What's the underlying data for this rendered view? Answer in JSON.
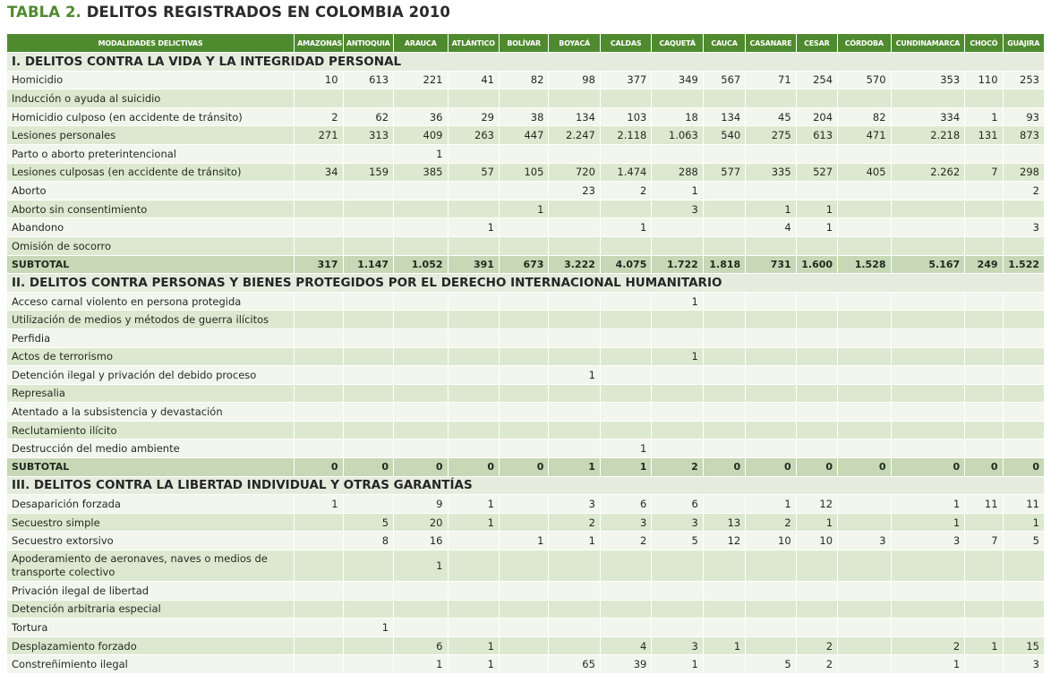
{
  "title": {
    "label": "TABLA 2.",
    "text": "DELITOS REGISTRADOS EN COLOMBIA 2010"
  },
  "columns": [
    "MODALIDADES DELICTIVAS",
    "AMAZONAS",
    "ANTIOQUIA",
    "ARAUCA",
    "ATLÁNTICO",
    "BOLÍVAR",
    "BOYACÁ",
    "CALDAS",
    "CAQUETÁ",
    "CAUCA",
    "CASANARE",
    "CESAR",
    "CÓRDOBA",
    "CUNDINAMARCA",
    "CHOCÓ",
    "GUAJIRA"
  ],
  "rows": [
    {
      "type": "section",
      "label": "I. DELITOS CONTRA LA VIDA Y LA INTEGRIDAD PERSONAL"
    },
    {
      "type": "data",
      "label": "Homicidio",
      "values": [
        "10",
        "613",
        "221",
        "41",
        "82",
        "98",
        "377",
        "349",
        "567",
        "71",
        "254",
        "570",
        "353",
        "110",
        "253"
      ]
    },
    {
      "type": "data",
      "label": "Inducción o ayuda al suicidio",
      "values": [
        "",
        "",
        "",
        "",
        "",
        "",
        "",
        "",
        "",
        "",
        "",
        "",
        "",
        "",
        ""
      ]
    },
    {
      "type": "data",
      "label": "Homicidio culposo (en accidente de tránsito)",
      "values": [
        "2",
        "62",
        "36",
        "29",
        "38",
        "134",
        "103",
        "18",
        "134",
        "45",
        "204",
        "82",
        "334",
        "1",
        "93"
      ]
    },
    {
      "type": "data",
      "label": "Lesiones personales",
      "values": [
        "271",
        "313",
        "409",
        "263",
        "447",
        "2.247",
        "2.118",
        "1.063",
        "540",
        "275",
        "613",
        "471",
        "2.218",
        "131",
        "873"
      ]
    },
    {
      "type": "data",
      "label": "Parto o aborto preterintencional",
      "values": [
        "",
        "",
        "1",
        "",
        "",
        "",
        "",
        "",
        "",
        "",
        "",
        "",
        "",
        "",
        ""
      ]
    },
    {
      "type": "data",
      "label": "Lesiones culposas (en accidente de tránsito)",
      "values": [
        "34",
        "159",
        "385",
        "57",
        "105",
        "720",
        "1.474",
        "288",
        "577",
        "335",
        "527",
        "405",
        "2.262",
        "7",
        "298"
      ]
    },
    {
      "type": "data",
      "label": "Aborto",
      "values": [
        "",
        "",
        "",
        "",
        "",
        "23",
        "2",
        "1",
        "",
        "",
        "",
        "",
        "",
        "",
        "2"
      ]
    },
    {
      "type": "data",
      "label": "Aborto sin consentimiento",
      "values": [
        "",
        "",
        "",
        "",
        "1",
        "",
        "",
        "3",
        "",
        "1",
        "1",
        "",
        "",
        "",
        ""
      ]
    },
    {
      "type": "data",
      "label": "Abandono",
      "values": [
        "",
        "",
        "",
        "1",
        "",
        "",
        "1",
        "",
        "",
        "4",
        "1",
        "",
        "",
        "",
        "3"
      ]
    },
    {
      "type": "data",
      "label": "Omisión de socorro",
      "values": [
        "",
        "",
        "",
        "",
        "",
        "",
        "",
        "",
        "",
        "",
        "",
        "",
        "",
        "",
        ""
      ]
    },
    {
      "type": "subtotal",
      "label": "SUBTOTAL",
      "values": [
        "317",
        "1.147",
        "1.052",
        "391",
        "673",
        "3.222",
        "4.075",
        "1.722",
        "1.818",
        "731",
        "1.600",
        "1.528",
        "5.167",
        "249",
        "1.522"
      ]
    },
    {
      "type": "section",
      "label": "II. DELITOS CONTRA PERSONAS Y BIENES PROTEGIDOS POR EL DERECHO INTERNACIONAL HUMANITARIO"
    },
    {
      "type": "data",
      "label": "Acceso carnal violento en persona protegida",
      "values": [
        "",
        "",
        "",
        "",
        "",
        "",
        "",
        "1",
        "",
        "",
        "",
        "",
        "",
        "",
        ""
      ]
    },
    {
      "type": "data",
      "label": "Utilización de medios y métodos de guerra ilícitos",
      "values": [
        "",
        "",
        "",
        "",
        "",
        "",
        "",
        "",
        "",
        "",
        "",
        "",
        "",
        "",
        ""
      ]
    },
    {
      "type": "data",
      "label": "Perfidia",
      "values": [
        "",
        "",
        "",
        "",
        "",
        "",
        "",
        "",
        "",
        "",
        "",
        "",
        "",
        "",
        ""
      ]
    },
    {
      "type": "data",
      "label": "Actos de terrorismo",
      "values": [
        "",
        "",
        "",
        "",
        "",
        "",
        "",
        "1",
        "",
        "",
        "",
        "",
        "",
        "",
        ""
      ]
    },
    {
      "type": "data",
      "label": "Detención ilegal y privación del debido proceso",
      "values": [
        "",
        "",
        "",
        "",
        "",
        "1",
        "",
        "",
        "",
        "",
        "",
        "",
        "",
        "",
        ""
      ]
    },
    {
      "type": "data",
      "label": "Represalia",
      "values": [
        "",
        "",
        "",
        "",
        "",
        "",
        "",
        "",
        "",
        "",
        "",
        "",
        "",
        "",
        ""
      ]
    },
    {
      "type": "data",
      "label": "Atentado a la subsistencia y devastación",
      "values": [
        "",
        "",
        "",
        "",
        "",
        "",
        "",
        "",
        "",
        "",
        "",
        "",
        "",
        "",
        ""
      ]
    },
    {
      "type": "data",
      "label": "Reclutamiento ilícito",
      "values": [
        "",
        "",
        "",
        "",
        "",
        "",
        "",
        "",
        "",
        "",
        "",
        "",
        "",
        "",
        ""
      ]
    },
    {
      "type": "data",
      "label": "Destrucción del medio ambiente",
      "values": [
        "",
        "",
        "",
        "",
        "",
        "",
        "1",
        "",
        "",
        "",
        "",
        "",
        "",
        "",
        ""
      ]
    },
    {
      "type": "subtotal",
      "label": "SUBTOTAL",
      "values": [
        "0",
        "0",
        "0",
        "0",
        "0",
        "1",
        "1",
        "2",
        "0",
        "0",
        "0",
        "0",
        "0",
        "0",
        "0"
      ]
    },
    {
      "type": "section",
      "label": "III. DELITOS CONTRA LA LIBERTAD INDIVIDUAL Y OTRAS GARANTÍAS"
    },
    {
      "type": "data",
      "label": "Desaparición forzada",
      "values": [
        "1",
        "",
        "9",
        "1",
        "",
        "3",
        "6",
        "6",
        "",
        "1",
        "12",
        "",
        "1",
        "11",
        "11"
      ]
    },
    {
      "type": "data",
      "label": "Secuestro simple",
      "values": [
        "",
        "5",
        "20",
        "1",
        "",
        "2",
        "3",
        "3",
        "13",
        "2",
        "1",
        "",
        "1",
        "",
        "1"
      ]
    },
    {
      "type": "data",
      "label": "Secuestro extorsivo",
      "values": [
        "",
        "8",
        "16",
        "",
        "1",
        "1",
        "2",
        "5",
        "12",
        "10",
        "10",
        "3",
        "3",
        "7",
        "5"
      ]
    },
    {
      "type": "data",
      "tall": true,
      "label": "Apoderamiento de aeronaves, naves o medios de transporte colectivo",
      "values": [
        "",
        "",
        "1",
        "",
        "",
        "",
        "",
        "",
        "",
        "",
        "",
        "",
        "",
        "",
        ""
      ]
    },
    {
      "type": "data",
      "label": "Privación ilegal de libertad",
      "values": [
        "",
        "",
        "",
        "",
        "",
        "",
        "",
        "",
        "",
        "",
        "",
        "",
        "",
        "",
        ""
      ]
    },
    {
      "type": "data",
      "label": "Detención arbitraria especial",
      "values": [
        "",
        "",
        "",
        "",
        "",
        "",
        "",
        "",
        "",
        "",
        "",
        "",
        "",
        "",
        ""
      ]
    },
    {
      "type": "data",
      "label": "Tortura",
      "values": [
        "",
        "1",
        "",
        "",
        "",
        "",
        "",
        "",
        "",
        "",
        "",
        "",
        "",
        "",
        ""
      ]
    },
    {
      "type": "data",
      "label": "Desplazamiento forzado",
      "values": [
        "",
        "",
        "6",
        "1",
        "",
        "",
        "4",
        "3",
        "1",
        "",
        "2",
        "",
        "2",
        "1",
        "15"
      ]
    },
    {
      "type": "data",
      "label": "Constreñimiento ilegal",
      "values": [
        "",
        "",
        "1",
        "1",
        "",
        "65",
        "39",
        "1",
        "",
        "5",
        "2",
        "",
        "1",
        "",
        "3"
      ]
    }
  ]
}
